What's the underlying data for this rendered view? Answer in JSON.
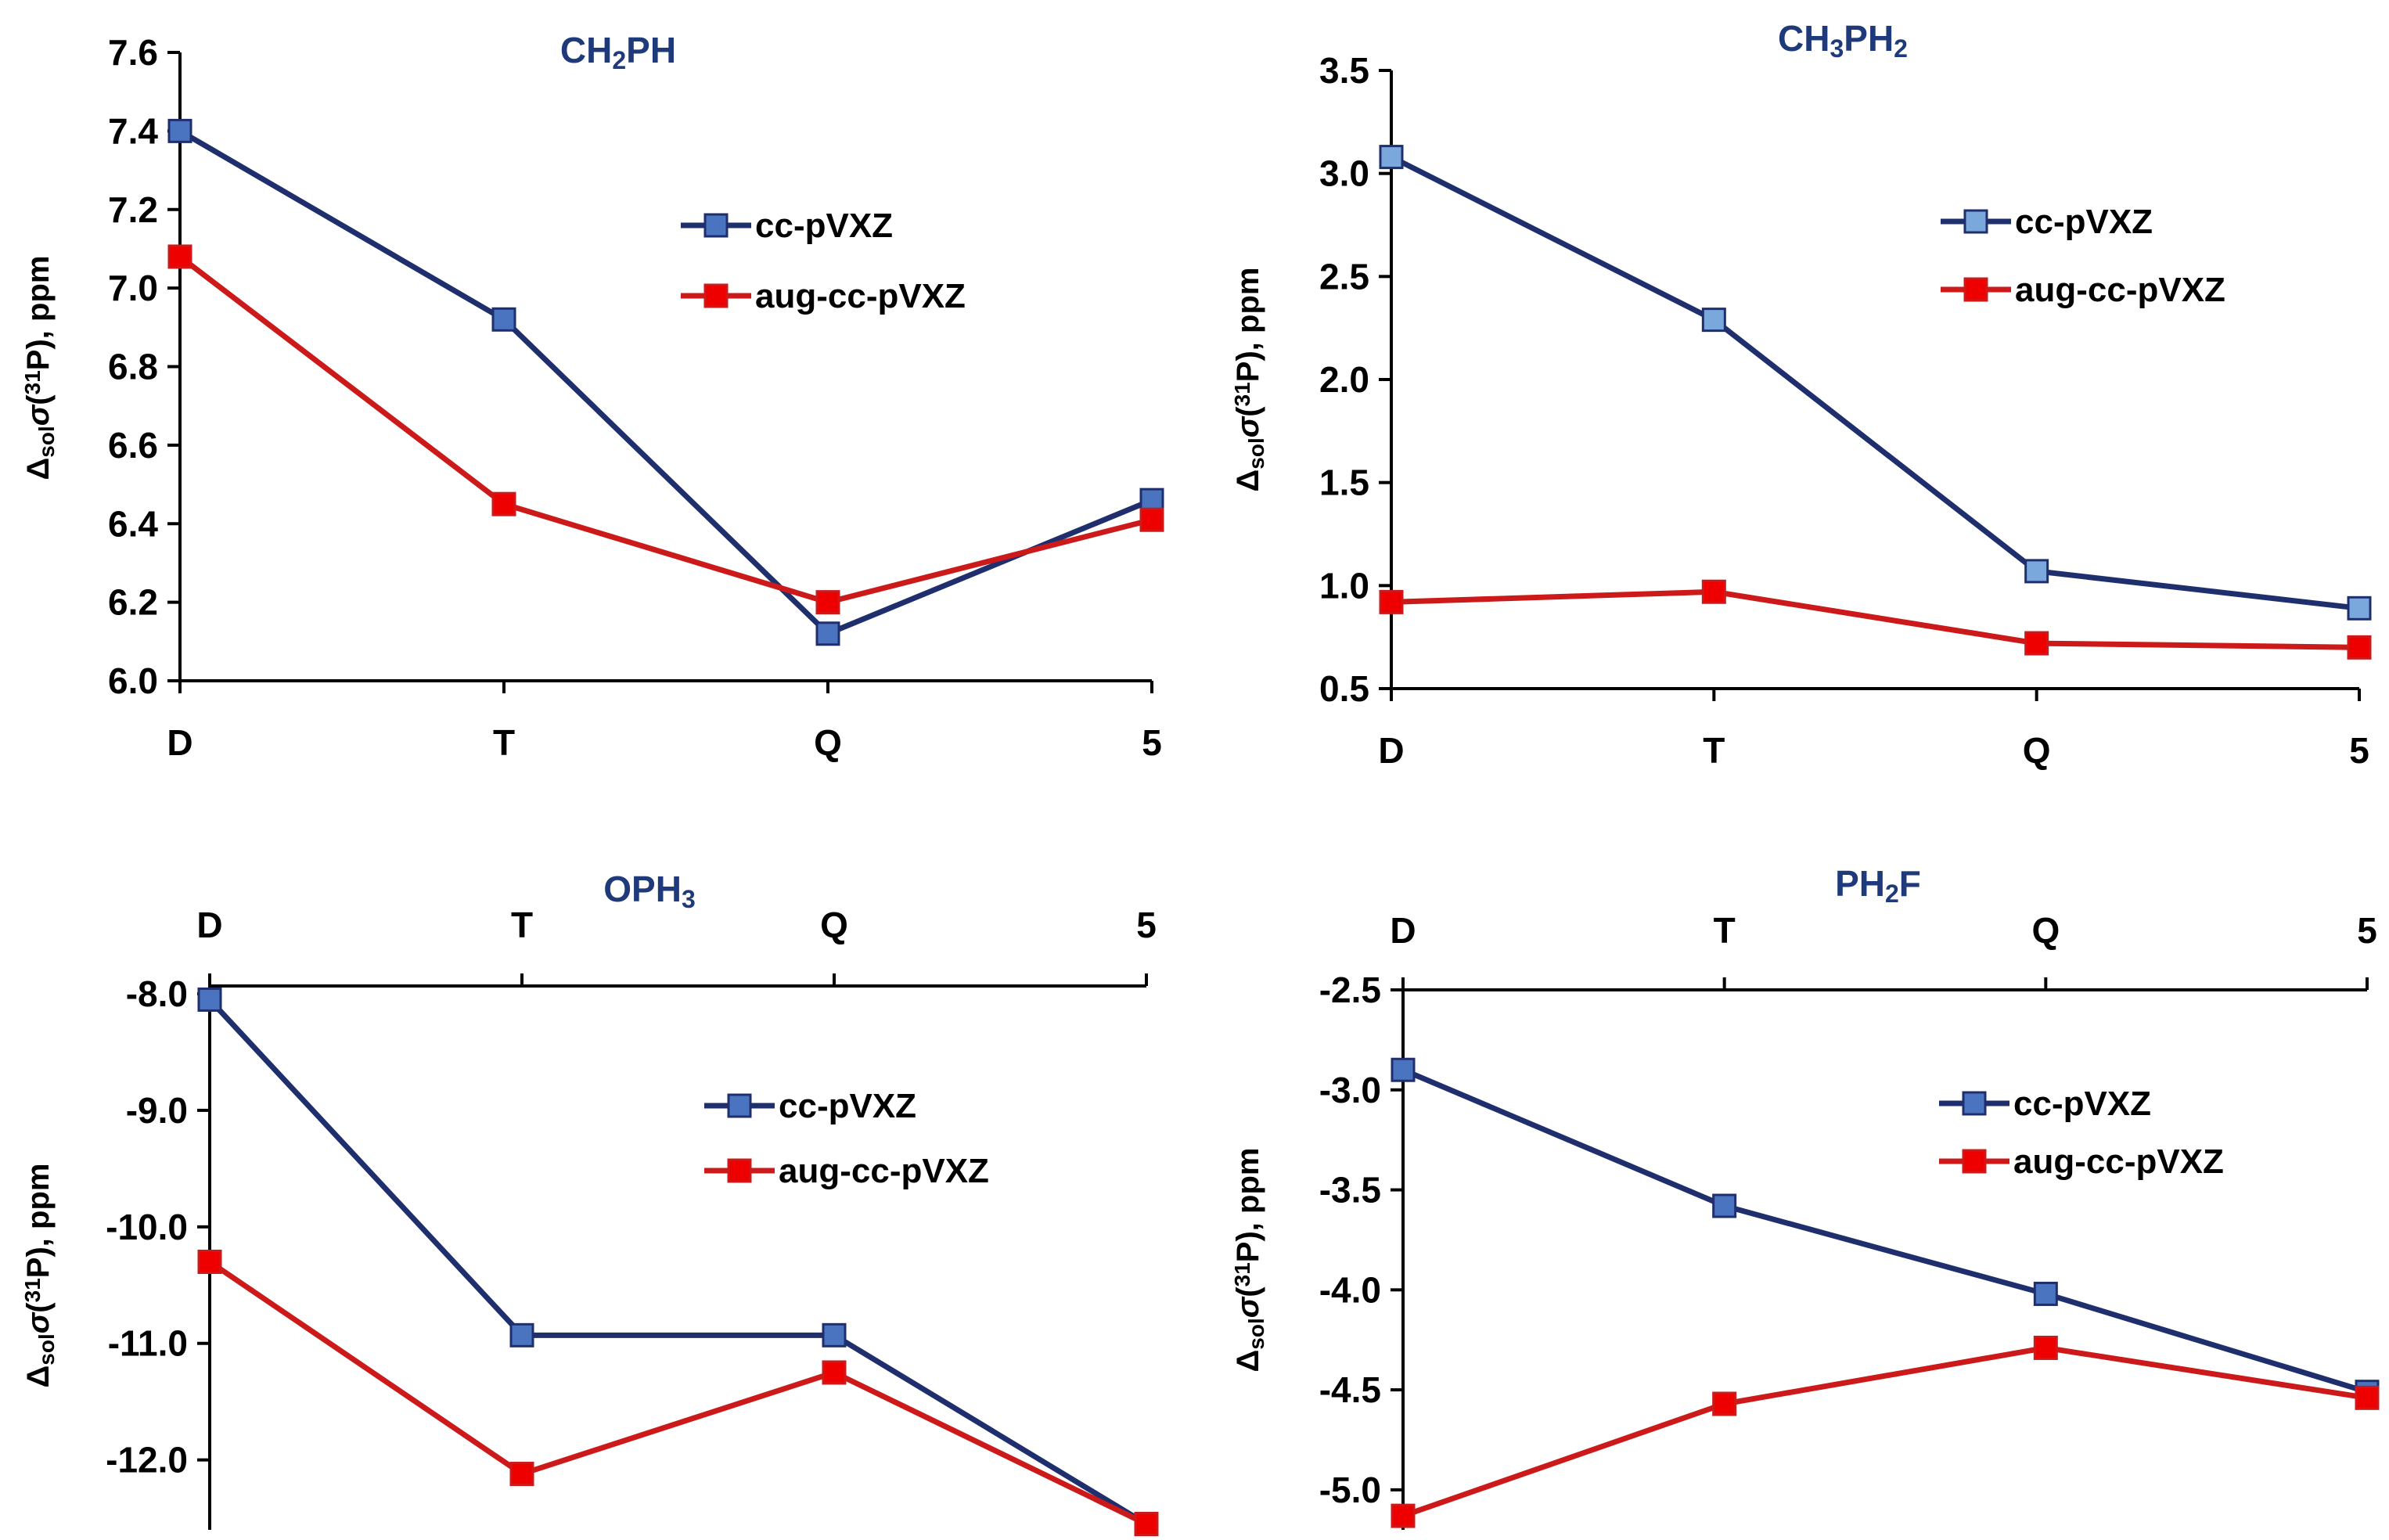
{
  "figure_label": "Four panels of solvent shift of phosphorus-31 shielding versus basis-set cardinal number",
  "colors": {
    "cc": "#1f2f6e",
    "cc_marker": "#4a74c0",
    "cc_marker_light": "#7aa8dc",
    "aug": "#cc1a1a",
    "aug_marker": "#ee0000",
    "title": "#1f3a7a"
  },
  "chart_data": [
    {
      "type": "line",
      "title": {
        "main": "CH",
        "parts": [
          [
            "CH",
            ""
          ],
          [
            "2",
            "sub"
          ],
          [
            "PH",
            ""
          ]
        ]
      },
      "categories": [
        "D",
        "T",
        "Q",
        "5"
      ],
      "ylabel": {
        "prefix": "Δ",
        "sub": "sol",
        "sigma": "σ",
        "open": "(",
        "sup": "31",
        "close": "P), ppm"
      },
      "ylim": [
        6.0,
        7.6
      ],
      "yticks": [
        "6.0",
        "6.2",
        "6.4",
        "6.6",
        "6.8",
        "7.0",
        "7.2",
        "7.4",
        "7.6"
      ],
      "xaxis_position": "bottom",
      "marker_style": "dark",
      "series": [
        {
          "name": "cc-pVXZ",
          "values": [
            7.4,
            6.92,
            6.12,
            6.46
          ]
        },
        {
          "name": "aug-cc-pVXZ",
          "values": [
            7.08,
            6.45,
            6.2,
            6.41
          ]
        }
      ]
    },
    {
      "type": "line",
      "title": {
        "main": "CH",
        "parts": [
          [
            "CH",
            ""
          ],
          [
            "3",
            "sub"
          ],
          [
            "PH",
            ""
          ],
          [
            "2",
            "sub"
          ]
        ]
      },
      "categories": [
        "D",
        "T",
        "Q",
        "5"
      ],
      "ylabel": {
        "prefix": "Δ",
        "sub": "sol",
        "sigma": "σ",
        "open": "(",
        "sup": "31",
        "close": "P), ppm"
      },
      "ylim": [
        0.5,
        3.5
      ],
      "yticks": [
        "0.5",
        "1.0",
        "1.5",
        "2.0",
        "2.5",
        "3.0",
        "3.5"
      ],
      "xaxis_position": "bottom",
      "marker_style": "light",
      "series": [
        {
          "name": "cc-pVXZ",
          "values": [
            3.08,
            2.29,
            1.07,
            0.89
          ]
        },
        {
          "name": "aug-cc-pVXZ",
          "values": [
            0.92,
            0.97,
            0.72,
            0.7
          ]
        }
      ]
    },
    {
      "type": "line",
      "title": {
        "main": "OPH",
        "parts": [
          [
            "OPH",
            ""
          ],
          [
            "3",
            "sub"
          ]
        ]
      },
      "categories": [
        "D",
        "T",
        "Q",
        "5"
      ],
      "ylabel": {
        "prefix": "Δ",
        "sub": "sol",
        "sigma": "σ",
        "open": "(",
        "sup": "31",
        "close": "P), ppm"
      },
      "ylim": [
        -12.6,
        -8.0
      ],
      "yticks": [
        "-8.0",
        "-9.0",
        "-10.0",
        "-11.0",
        "-12.0"
      ],
      "xaxis_position": "top",
      "marker_style": "dark",
      "series": [
        {
          "name": "cc-pVXZ",
          "values": [
            -8.05,
            -10.93,
            -10.93,
            -12.55
          ]
        },
        {
          "name": "aug-cc-pVXZ",
          "values": [
            -10.3,
            -12.12,
            -11.25,
            -12.55
          ]
        }
      ]
    },
    {
      "type": "line",
      "title": {
        "main": "PH",
        "parts": [
          [
            "PH",
            ""
          ],
          [
            "2",
            "sub"
          ],
          [
            "F",
            ""
          ]
        ]
      },
      "categories": [
        "D",
        "T",
        "Q",
        "5"
      ],
      "ylabel": {
        "prefix": "Δ",
        "sub": "sol",
        "sigma": "σ",
        "open": "(",
        "sup": "31",
        "close": "P), ppm"
      },
      "ylim": [
        -5.2,
        -2.5
      ],
      "yticks": [
        "-2.5",
        "-3.0",
        "-3.5",
        "-4.0",
        "-4.5",
        "-5.0"
      ],
      "xaxis_position": "top",
      "marker_style": "dark",
      "series": [
        {
          "name": "cc-pVXZ",
          "values": [
            -2.9,
            -3.58,
            -4.02,
            -4.51
          ]
        },
        {
          "name": "aug-cc-pVXZ",
          "values": [
            -5.13,
            -4.57,
            -4.29,
            -4.54
          ]
        }
      ]
    }
  ]
}
